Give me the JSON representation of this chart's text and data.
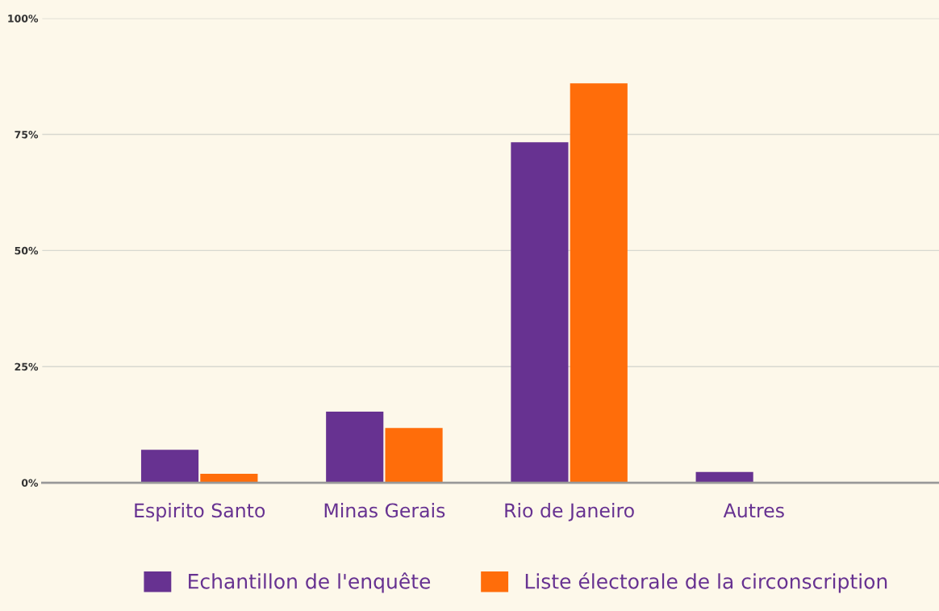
{
  "chart_data": {
    "type": "bar",
    "categories": [
      "Espirito Santo",
      "Minas Gerais",
      "Rio de Janeiro",
      "Autres"
    ],
    "series": [
      {
        "name": "Echantillon de l'enquête",
        "color": "#673291",
        "values": [
          7.1,
          15.3,
          73.3,
          2.3
        ]
      },
      {
        "name": "Liste électorale de la circonscription",
        "color": "#ff6d0a",
        "values": [
          1.9,
          11.8,
          86.0,
          0
        ]
      }
    ],
    "ylim": [
      0,
      100
    ],
    "yticks": [
      {
        "value": 0,
        "label": "0%"
      },
      {
        "value": 25,
        "label": "25%"
      },
      {
        "value": 50,
        "label": "50%"
      },
      {
        "value": 75,
        "label": "75%"
      },
      {
        "value": 100,
        "label": "100%"
      }
    ],
    "grid": "y",
    "legend": "bottom"
  }
}
